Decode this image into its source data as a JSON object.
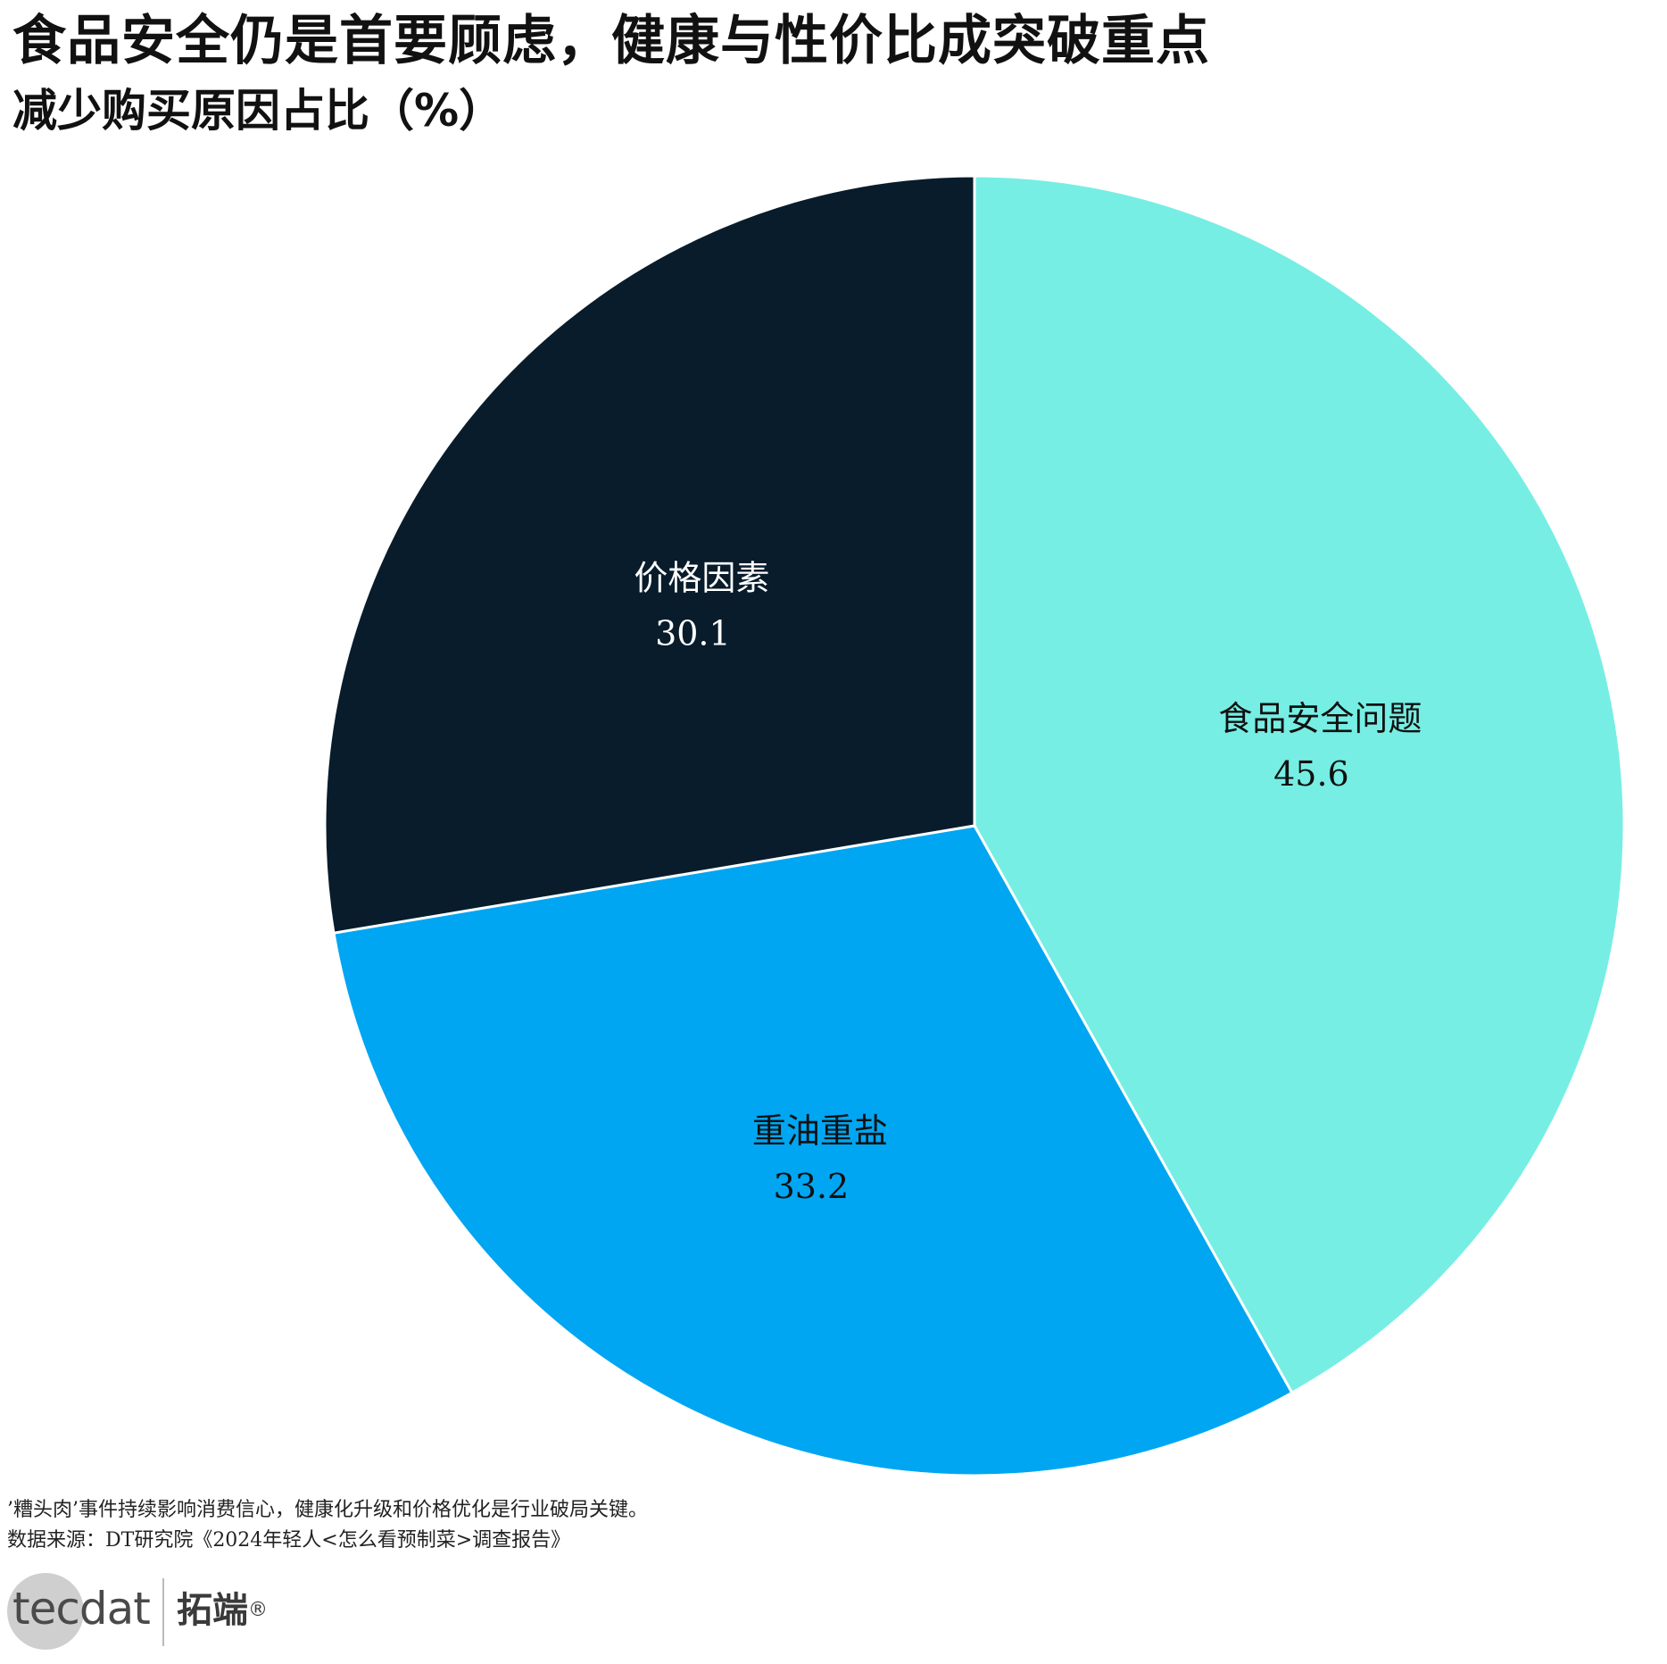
{
  "header": {
    "title": "食品安全仍是首要顾虑，健康与性价比成突破重点",
    "subtitle": "减少购买原因占比（%）"
  },
  "chart_data": {
    "type": "pie",
    "title": "食品安全仍是首要顾虑，健康与性价比成突破重点",
    "subtitle": "减少购买原因占比（%）",
    "start_angle_deg": 0,
    "direction": "clockwise",
    "slices": [
      {
        "label": "食品安全问题",
        "value": 45.6,
        "value_text": "45.6",
        "color": "#76EEE4",
        "text_color": "#111111"
      },
      {
        "label": "重油重盐",
        "value": 33.2,
        "value_text": "33.2",
        "color": "#00A6F2",
        "text_color": "#111111"
      },
      {
        "label": "价格因素",
        "value": 30.1,
        "value_text": "30.1",
        "color": "#081C2B",
        "text_color": "#ffffff"
      }
    ]
  },
  "footer": {
    "note": "’糟头肉’事件持续影响消费信心，健康化升级和价格优化是行业破局关键。",
    "source": "数据来源：DT研究院《2024年轻人<怎么看预制菜>调查报告》"
  },
  "logo": {
    "word": "tecdat",
    "cn": "拓端",
    "reg": "®"
  }
}
